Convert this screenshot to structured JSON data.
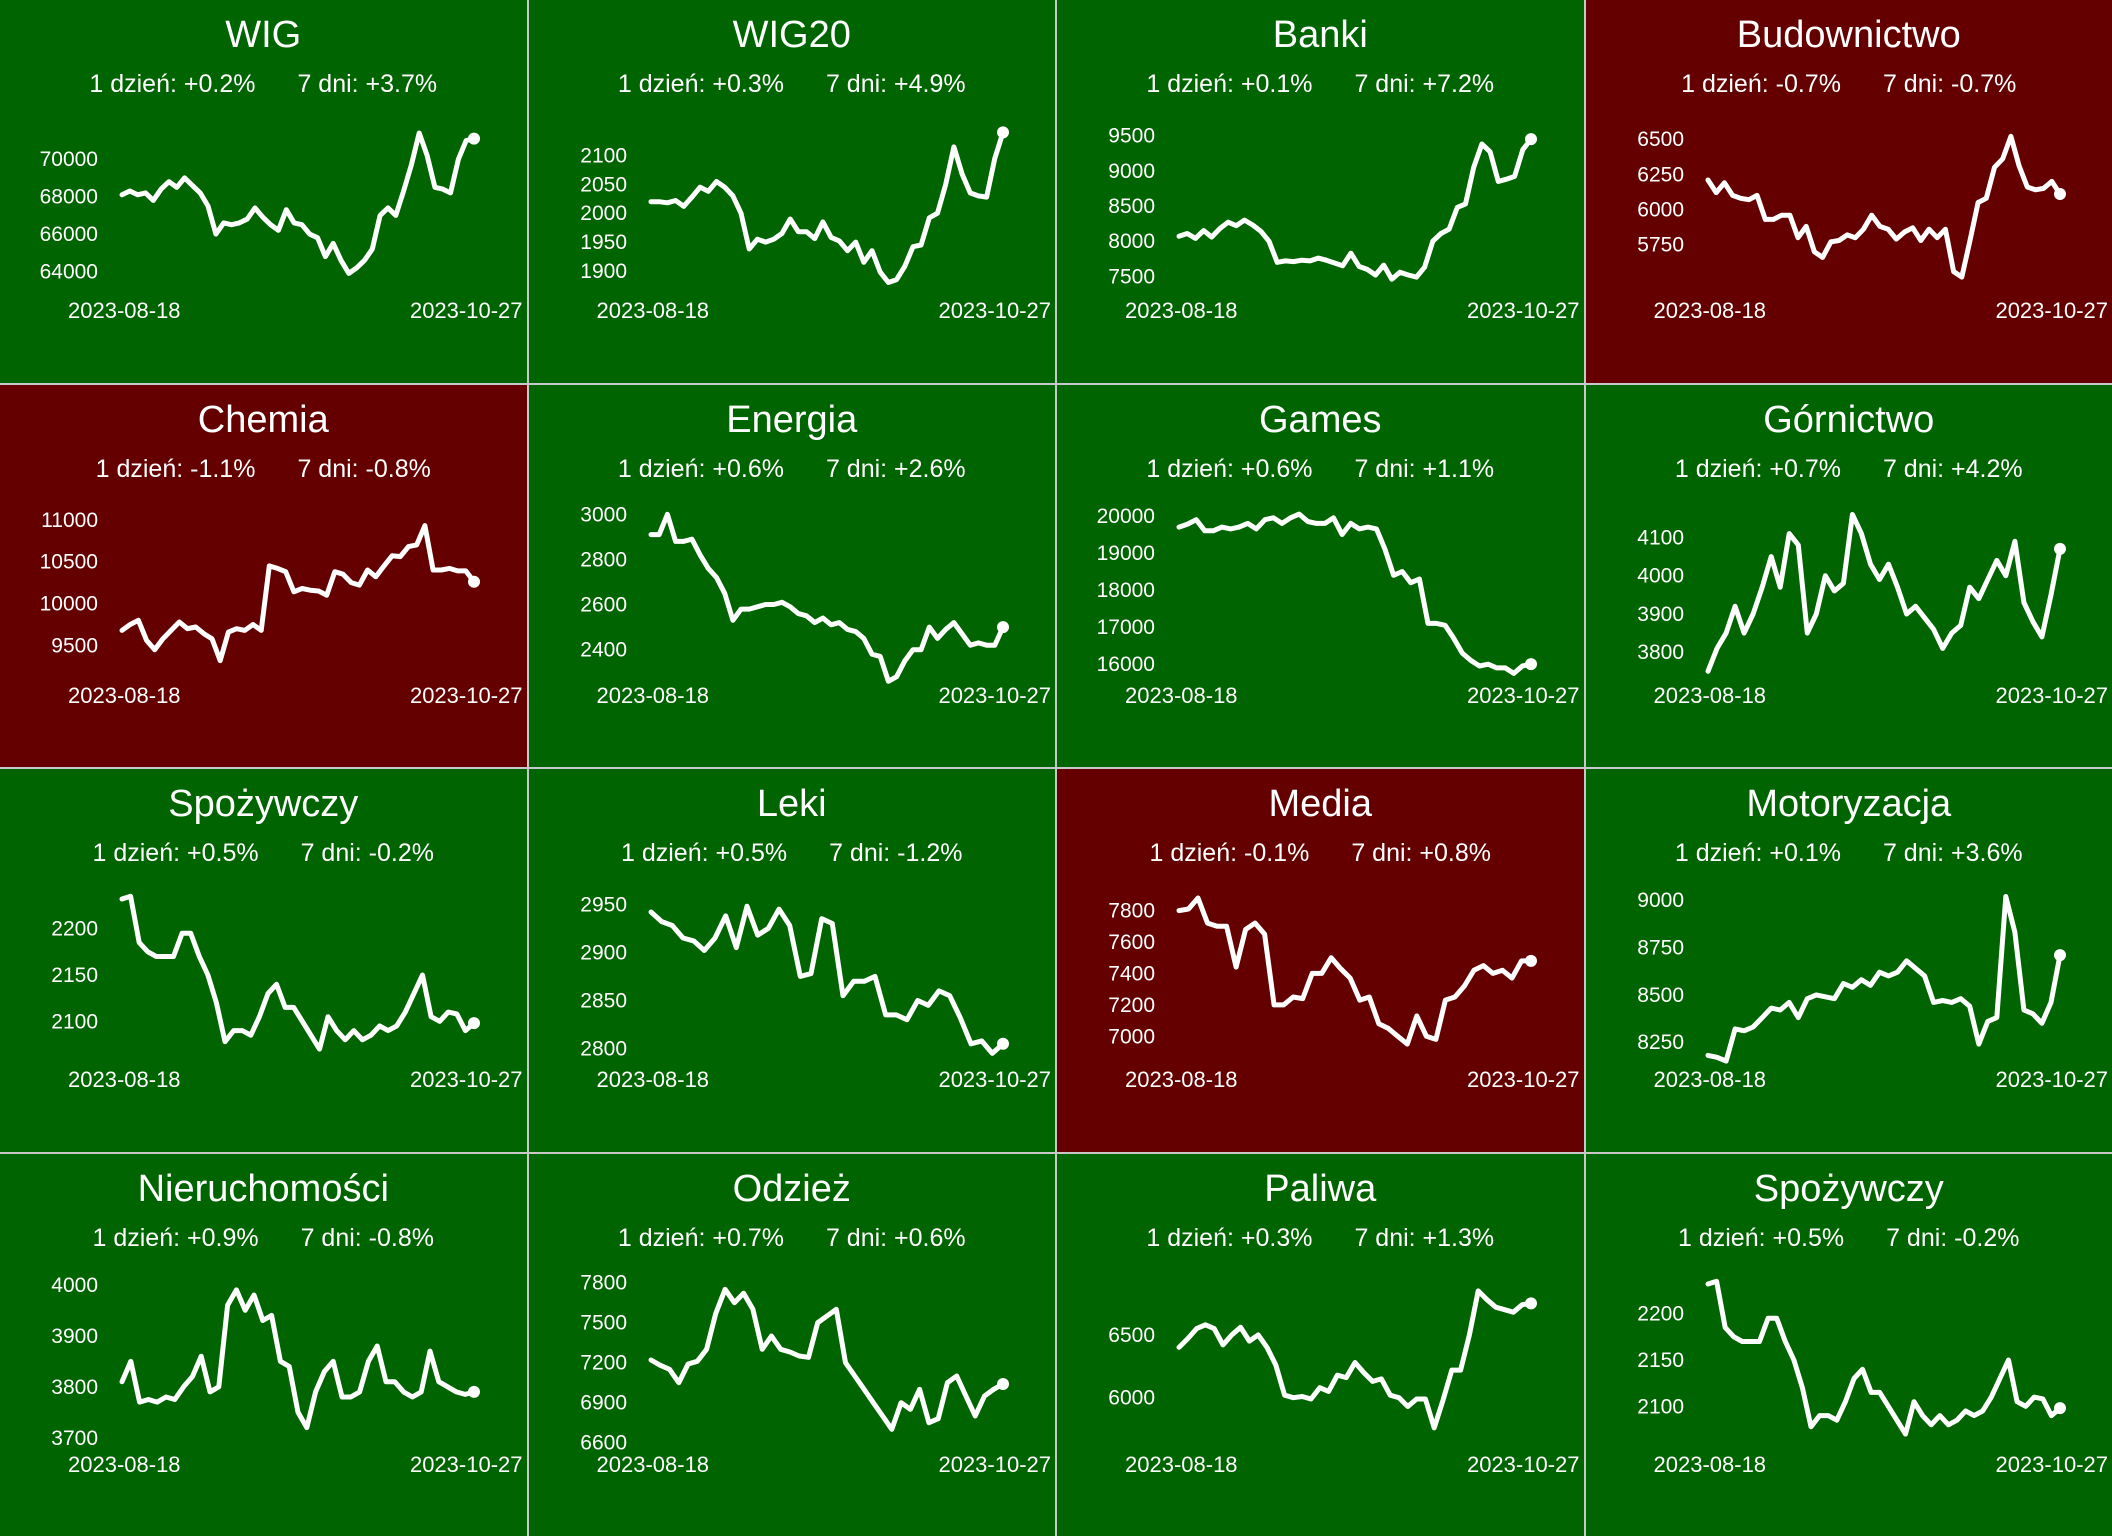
{
  "colors": {
    "up": "#006400",
    "down": "#640000",
    "line": "#ffffff",
    "border": "#c8c8c8"
  },
  "chart_data": [
    {
      "type": "line",
      "title": "WIG",
      "trend": "up",
      "day_label": "1 dzień: +0.2%",
      "week_label": "7 dni: +3.7%",
      "x_start": "2023-08-18",
      "x_end": "2023-10-27",
      "ylim": [
        62800,
        72200
      ],
      "yticks": [
        64000,
        66000,
        68000,
        70000
      ],
      "values": [
        68100,
        68300,
        68100,
        68200,
        67800,
        68400,
        68800,
        68500,
        69000,
        68600,
        68200,
        67500,
        66000,
        66600,
        66500,
        66600,
        66800,
        67400,
        66900,
        66500,
        66200,
        67300,
        66600,
        66500,
        66000,
        65800,
        64800,
        65500,
        64600,
        63900,
        64200,
        64600,
        65200,
        67000,
        67400,
        67000,
        68300,
        69700,
        71400,
        70200,
        68500,
        68400,
        68200,
        70000,
        71000,
        71100
      ]
    },
    {
      "type": "line",
      "title": "WIG20",
      "trend": "up",
      "day_label": "1 dzień: +0.3%",
      "week_label": "7 dni: +4.9%",
      "x_start": "2023-08-18",
      "x_end": "2023-10-27",
      "ylim": [
        1860,
        2165
      ],
      "yticks": [
        1900,
        1950,
        2000,
        2050,
        2100
      ],
      "values": [
        2020,
        2020,
        2018,
        2022,
        2012,
        2028,
        2045,
        2038,
        2055,
        2045,
        2030,
        2000,
        1938,
        1955,
        1950,
        1955,
        1965,
        1990,
        1968,
        1968,
        1956,
        1985,
        1958,
        1952,
        1935,
        1950,
        1915,
        1935,
        1898,
        1880,
        1885,
        1908,
        1942,
        1945,
        1992,
        2000,
        2050,
        2115,
        2068,
        2035,
        2030,
        2028,
        2095,
        2140
      ]
    },
    {
      "type": "line",
      "title": "Banki",
      "trend": "up",
      "day_label": "1 dzień: +0.1%",
      "week_label": "7 dni: +7.2%",
      "x_start": "2023-08-18",
      "x_end": "2023-10-27",
      "ylim": [
        7250,
        9750
      ],
      "yticks": [
        7500,
        8000,
        8500,
        9000,
        9500
      ],
      "values": [
        8070,
        8110,
        8040,
        8150,
        8060,
        8180,
        8270,
        8220,
        8300,
        8230,
        8140,
        8000,
        7700,
        7720,
        7710,
        7730,
        7720,
        7760,
        7730,
        7690,
        7650,
        7830,
        7640,
        7600,
        7520,
        7660,
        7460,
        7560,
        7520,
        7490,
        7630,
        8000,
        8110,
        8170,
        8480,
        8530,
        9050,
        9380,
        9270,
        8850,
        8880,
        8920,
        9300,
        9450
      ]
    },
    {
      "type": "line",
      "title": "Budownictwo",
      "trend": "down",
      "day_label": "1 dzień: -0.7%",
      "week_label": "7 dni: -0.7%",
      "x_start": "2023-08-18",
      "x_end": "2023-10-27",
      "ylim": [
        5400,
        6650
      ],
      "yticks": [
        5750,
        6000,
        6250,
        6500
      ],
      "values": [
        6210,
        6120,
        6190,
        6100,
        6080,
        6070,
        6100,
        5930,
        5930,
        5960,
        5960,
        5800,
        5880,
        5700,
        5660,
        5770,
        5780,
        5820,
        5800,
        5860,
        5960,
        5880,
        5860,
        5790,
        5840,
        5870,
        5780,
        5860,
        5800,
        5860,
        5560,
        5520,
        5780,
        6050,
        6080,
        6300,
        6360,
        6520,
        6310,
        6160,
        6140,
        6150,
        6200,
        6110
      ]
    },
    {
      "type": "line",
      "title": "Chemia",
      "trend": "down",
      "day_label": "1 dzień: -1.1%",
      "week_label": "7 dni: -0.8%",
      "x_start": "2023-08-18",
      "x_end": "2023-10-27",
      "ylim": [
        9100,
        11200
      ],
      "yticks": [
        9500,
        10000,
        10500,
        11000
      ],
      "values": [
        9680,
        9750,
        9800,
        9560,
        9450,
        9580,
        9680,
        9780,
        9700,
        9720,
        9640,
        9580,
        9320,
        9660,
        9700,
        9680,
        9750,
        9680,
        10450,
        10420,
        10380,
        10140,
        10180,
        10160,
        10150,
        10100,
        10380,
        10350,
        10250,
        10220,
        10400,
        10320,
        10450,
        10570,
        10560,
        10680,
        10700,
        10930,
        10400,
        10400,
        10420,
        10390,
        10390,
        10260
      ]
    },
    {
      "type": "line",
      "title": "Energia",
      "trend": "up",
      "day_label": "1 dzień: +0.6%",
      "week_label": "7 dni: +2.6%",
      "x_start": "2023-08-18",
      "x_end": "2023-10-27",
      "ylim": [
        2270,
        3050
      ],
      "yticks": [
        2400,
        2600,
        2800,
        3000
      ],
      "values": [
        2910,
        2910,
        3000,
        2880,
        2880,
        2890,
        2820,
        2760,
        2720,
        2650,
        2530,
        2580,
        2580,
        2590,
        2600,
        2600,
        2610,
        2590,
        2560,
        2550,
        2520,
        2540,
        2510,
        2520,
        2490,
        2480,
        2450,
        2380,
        2370,
        2260,
        2280,
        2350,
        2400,
        2400,
        2500,
        2450,
        2490,
        2520,
        2470,
        2420,
        2430,
        2420,
        2420,
        2500
      ]
    },
    {
      "type": "line",
      "title": "Games",
      "trend": "up",
      "day_label": "1 dzień: +0.6%",
      "week_label": "7 dni: +1.1%",
      "x_start": "2023-08-18",
      "x_end": "2023-10-27",
      "ylim": [
        15600,
        20350
      ],
      "yticks": [
        16000,
        17000,
        18000,
        19000,
        20000
      ],
      "values": [
        19700,
        19780,
        19900,
        19600,
        19600,
        19700,
        19650,
        19700,
        19800,
        19650,
        19900,
        19950,
        19800,
        19950,
        20050,
        19850,
        19800,
        19800,
        19950,
        19500,
        19800,
        19650,
        19700,
        19650,
        19100,
        18400,
        18500,
        18200,
        18300,
        17100,
        17100,
        17050,
        16700,
        16300,
        16100,
        15950,
        16000,
        15900,
        15900,
        15750,
        15950,
        16000
      ]
    },
    {
      "type": "line",
      "title": "Górnictwo",
      "trend": "up",
      "day_label": "1 dzień: +0.7%",
      "week_label": "7 dni: +4.2%",
      "x_start": "2023-08-18",
      "x_end": "2023-10-27",
      "ylim": [
        3730,
        4190
      ],
      "yticks": [
        3800,
        3900,
        4000,
        4100
      ],
      "values": [
        3750,
        3810,
        3850,
        3920,
        3850,
        3900,
        3970,
        4050,
        3970,
        4110,
        4080,
        3850,
        3900,
        4000,
        3960,
        3980,
        4160,
        4110,
        4030,
        3990,
        4030,
        3970,
        3900,
        3920,
        3890,
        3860,
        3810,
        3850,
        3870,
        3970,
        3940,
        3990,
        4040,
        4000,
        4090,
        3930,
        3880,
        3840,
        3950,
        4070
      ]
    },
    {
      "type": "line",
      "title": "Spożywczy",
      "trend": "up",
      "day_label": "1 dzień: +0.5%",
      "week_label": "7 dni: -0.2%",
      "x_start": "2023-08-18",
      "x_end": "2023-10-27",
      "ylim": [
        2055,
        2245
      ],
      "yticks": [
        2100,
        2150,
        2200
      ],
      "values": [
        2232,
        2235,
        2185,
        2175,
        2170,
        2170,
        2170,
        2195,
        2195,
        2170,
        2150,
        2120,
        2078,
        2090,
        2090,
        2085,
        2105,
        2130,
        2140,
        2115,
        2115,
        2100,
        2085,
        2070,
        2105,
        2090,
        2080,
        2090,
        2080,
        2085,
        2095,
        2090,
        2095,
        2110,
        2130,
        2150,
        2105,
        2100,
        2110,
        2108,
        2090,
        2098
      ]
    },
    {
      "type": "line",
      "title": "Leki",
      "trend": "up",
      "day_label": "1 dzień: +0.5%",
      "week_label": "7 dni: -1.2%",
      "x_start": "2023-08-18",
      "x_end": "2023-10-27",
      "ylim": [
        2785,
        2968
      ],
      "yticks": [
        2800,
        2850,
        2900,
        2950
      ],
      "values": [
        2942,
        2932,
        2928,
        2915,
        2912,
        2902,
        2915,
        2938,
        2905,
        2948,
        2918,
        2925,
        2945,
        2928,
        2875,
        2878,
        2935,
        2930,
        2855,
        2870,
        2870,
        2875,
        2835,
        2835,
        2830,
        2850,
        2845,
        2860,
        2855,
        2832,
        2805,
        2808,
        2795,
        2805
      ]
    },
    {
      "type": "line",
      "title": "Media",
      "trend": "down",
      "day_label": "1 dzień: -0.1%",
      "week_label": "7 dni: +0.8%",
      "x_start": "2023-08-18",
      "x_end": "2023-10-27",
      "ylim": [
        6830,
        7950
      ],
      "yticks": [
        7000,
        7200,
        7400,
        7600,
        7800
      ],
      "values": [
        7800,
        7810,
        7880,
        7720,
        7700,
        7700,
        7440,
        7680,
        7720,
        7650,
        7200,
        7200,
        7250,
        7240,
        7400,
        7400,
        7500,
        7430,
        7370,
        7230,
        7250,
        7080,
        7050,
        7000,
        6950,
        7130,
        7000,
        6980,
        7230,
        7250,
        7320,
        7420,
        7450,
        7400,
        7420,
        7370,
        7480,
        7480
      ]
    },
    {
      "type": "line",
      "title": "Motoryzacja",
      "trend": "up",
      "day_label": "1 dzień: +0.1%",
      "week_label": "7 dni: +3.6%",
      "x_start": "2023-08-18",
      "x_end": "2023-10-27",
      "ylim": [
        8140,
        9070
      ],
      "yticks": [
        8250,
        8500,
        8750,
        9000
      ],
      "values": [
        8180,
        8170,
        8150,
        8320,
        8310,
        8330,
        8380,
        8430,
        8420,
        8460,
        8380,
        8480,
        8500,
        8490,
        8480,
        8560,
        8540,
        8580,
        8550,
        8620,
        8600,
        8620,
        8680,
        8640,
        8600,
        8460,
        8470,
        8460,
        8480,
        8440,
        8240,
        8360,
        8380,
        9020,
        8830,
        8420,
        8400,
        8350,
        8460,
        8710
      ]
    },
    {
      "type": "line",
      "title": "Nieruchomości",
      "trend": "up",
      "day_label": "1 dzień: +0.9%",
      "week_label": "7 dni: -0.8%",
      "x_start": "2023-08-18",
      "x_end": "2023-10-27",
      "ylim": [
        3680,
        4025
      ],
      "yticks": [
        3700,
        3800,
        3900,
        4000
      ],
      "values": [
        3810,
        3850,
        3770,
        3775,
        3770,
        3780,
        3775,
        3800,
        3820,
        3860,
        3790,
        3800,
        3960,
        3990,
        3950,
        3980,
        3930,
        3940,
        3850,
        3840,
        3750,
        3720,
        3790,
        3830,
        3850,
        3780,
        3780,
        3790,
        3850,
        3880,
        3810,
        3810,
        3790,
        3780,
        3790,
        3870,
        3810,
        3800,
        3790,
        3785,
        3790
      ]
    },
    {
      "type": "line",
      "title": "Odzież",
      "trend": "up",
      "day_label": "1 dzień: +0.7%",
      "week_label": "7 dni: +0.6%",
      "x_start": "2023-08-18",
      "x_end": "2023-10-27",
      "ylim": [
        6560,
        7880
      ],
      "yticks": [
        6600,
        6900,
        7200,
        7500,
        7800
      ],
      "values": [
        7220,
        7180,
        7150,
        7050,
        7190,
        7210,
        7300,
        7570,
        7750,
        7650,
        7720,
        7600,
        7300,
        7400,
        7300,
        7280,
        7250,
        7240,
        7500,
        7550,
        7600,
        7200,
        7100,
        7000,
        6900,
        6800,
        6700,
        6900,
        6850,
        7000,
        6750,
        6780,
        7050,
        7100,
        6950,
        6800,
        6950,
        7000,
        7040
      ]
    },
    {
      "type": "line",
      "title": "Paliwa",
      "trend": "up",
      "day_label": "1 dzień: +0.3%",
      "week_label": "7 dni: +1.3%",
      "x_start": "2023-08-18",
      "x_end": "2023-10-27",
      "ylim": [
        5600,
        7000
      ],
      "yticks": [
        6000,
        6500
      ],
      "values": [
        6400,
        6470,
        6550,
        6580,
        6550,
        6420,
        6500,
        6560,
        6450,
        6500,
        6400,
        6260,
        6020,
        6000,
        6010,
        5990,
        6080,
        6050,
        6180,
        6160,
        6280,
        6200,
        6130,
        6150,
        6020,
        6000,
        5930,
        5990,
        5990,
        5760,
        5980,
        6220,
        6220,
        6500,
        6850,
        6780,
        6720,
        6700,
        6680,
        6740,
        6750
      ]
    },
    {
      "type": "line",
      "title": "Spożywczy",
      "trend": "up",
      "day_label": "1 dzień: +0.5%",
      "week_label": "7 dni: -0.2%",
      "x_start": "2023-08-18",
      "x_end": "2023-10-27",
      "ylim": [
        2055,
        2245
      ],
      "yticks": [
        2100,
        2150,
        2200
      ],
      "values": [
        2232,
        2235,
        2185,
        2175,
        2170,
        2170,
        2170,
        2195,
        2195,
        2170,
        2150,
        2120,
        2078,
        2090,
        2090,
        2085,
        2105,
        2130,
        2140,
        2115,
        2115,
        2100,
        2085,
        2070,
        2105,
        2090,
        2080,
        2090,
        2080,
        2085,
        2095,
        2090,
        2095,
        2110,
        2130,
        2150,
        2105,
        2100,
        2110,
        2108,
        2090,
        2098
      ]
    }
  ]
}
